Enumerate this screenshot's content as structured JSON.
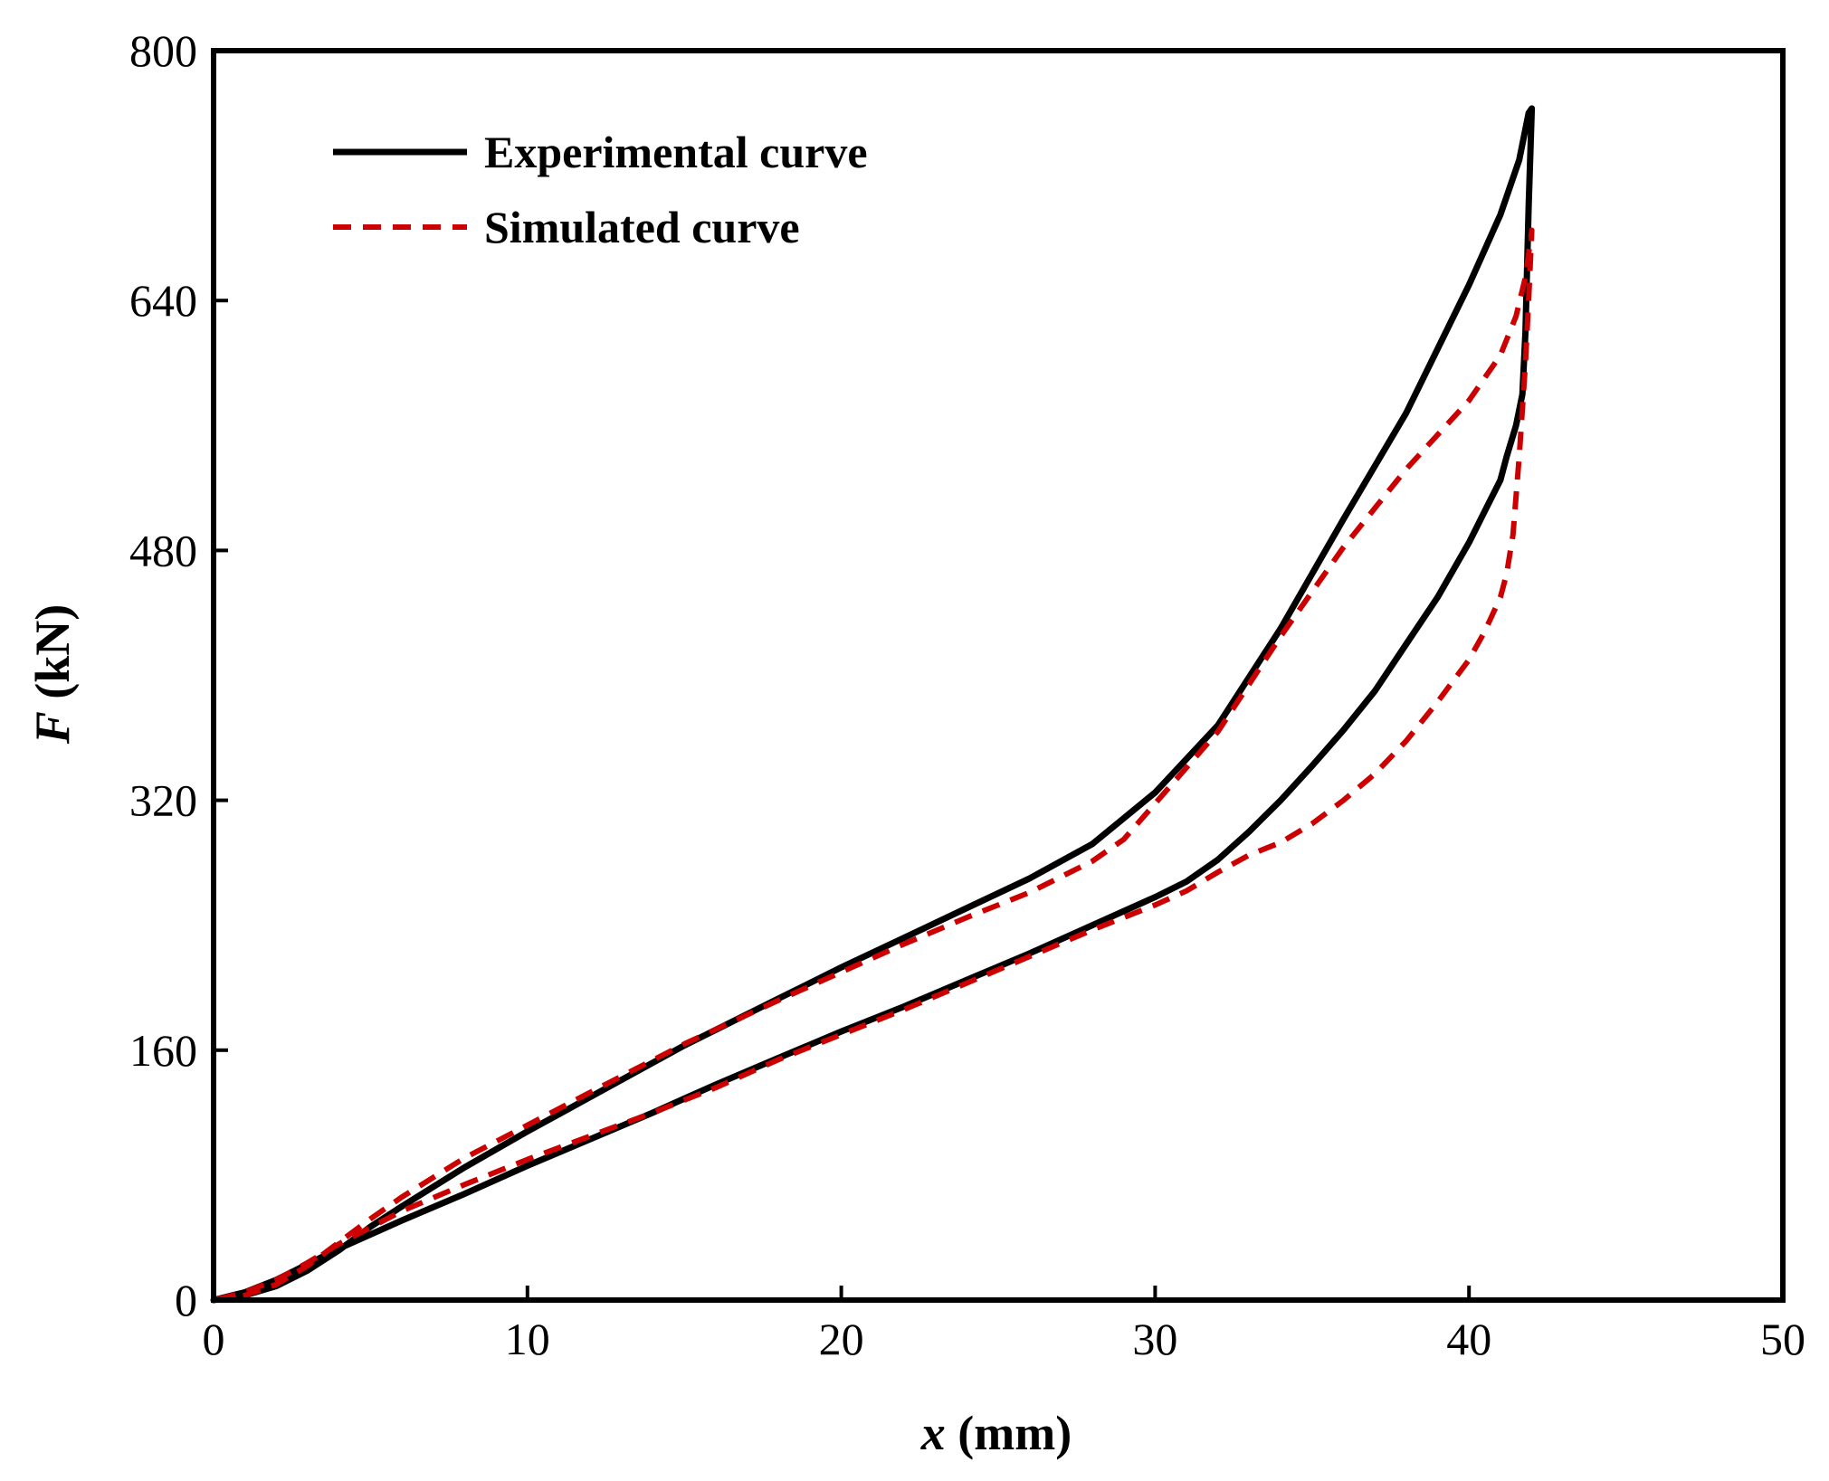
{
  "chart_data": {
    "type": "line",
    "title": "",
    "xlabel_var": "x",
    "xlabel_unit": " (mm)",
    "ylabel_var": "F",
    "ylabel_unit": " (kN)",
    "xlim": [
      0,
      50
    ],
    "ylim": [
      0,
      800
    ],
    "xticks": [
      0,
      10,
      20,
      30,
      40,
      50
    ],
    "yticks": [
      0,
      160,
      320,
      480,
      640,
      800
    ],
    "grid": false,
    "legend_position": "top-left",
    "series": [
      {
        "name": "Experimental curve",
        "color": "#000000",
        "style": "solid",
        "x": [
          0,
          1,
          2,
          3,
          4,
          5,
          6,
          8,
          10,
          12,
          15,
          18,
          20,
          22,
          24,
          26,
          28,
          30,
          32,
          34,
          36,
          38,
          40,
          41,
          41.6,
          41.9,
          42,
          41.9,
          41.8,
          41.7,
          41.5,
          41.2,
          41,
          40.5,
          40,
          39,
          38,
          37,
          36,
          35,
          34,
          33,
          32,
          31,
          30,
          28,
          26,
          24,
          22,
          20,
          18,
          16,
          14,
          12,
          10,
          8,
          6,
          4,
          3,
          2,
          1,
          0
        ],
        "y": [
          0,
          3,
          9,
          19,
          32,
          47,
          60,
          85,
          108,
          130,
          163,
          193,
          213,
          232,
          251,
          270,
          292,
          325,
          368,
          430,
          500,
          568,
          650,
          695,
          730,
          760,
          763,
          700,
          620,
          580,
          560,
          540,
          525,
          505,
          485,
          450,
          420,
          390,
          365,
          342,
          320,
          300,
          282,
          268,
          258,
          240,
          222,
          205,
          188,
          172,
          155,
          138,
          120,
          103,
          86,
          68,
          51,
          33,
          23,
          13,
          5,
          0
        ]
      },
      {
        "name": "Simulated curve",
        "color": "#cc0000",
        "style": "dashed",
        "x": [
          0,
          1,
          2,
          3,
          4,
          5,
          6,
          8,
          10,
          12,
          15,
          18,
          20,
          22,
          24,
          26,
          28,
          29,
          30,
          32,
          34,
          36,
          38,
          40,
          41,
          41.5,
          41.8,
          42,
          41.9,
          41.8,
          41.6,
          41.4,
          41.2,
          41,
          40.5,
          40,
          39,
          38,
          37,
          36,
          35,
          34,
          33,
          32,
          31,
          30,
          28,
          26,
          24,
          22,
          20,
          18,
          16,
          14,
          12,
          10,
          8,
          6,
          4,
          3,
          2,
          1,
          0
        ],
        "y": [
          0,
          3,
          10,
          22,
          37,
          52,
          66,
          91,
          112,
          133,
          164,
          192,
          210,
          228,
          245,
          261,
          281,
          295,
          318,
          364,
          425,
          482,
          532,
          576,
          605,
          630,
          655,
          685,
          640,
          600,
          540,
          490,
          465,
          450,
          428,
          410,
          383,
          358,
          337,
          320,
          305,
          293,
          285,
          274,
          262,
          253,
          237,
          220,
          203,
          186,
          170,
          154,
          136,
          120,
          105,
          90,
          74,
          57,
          36,
          24,
          13,
          5,
          0
        ]
      }
    ]
  }
}
